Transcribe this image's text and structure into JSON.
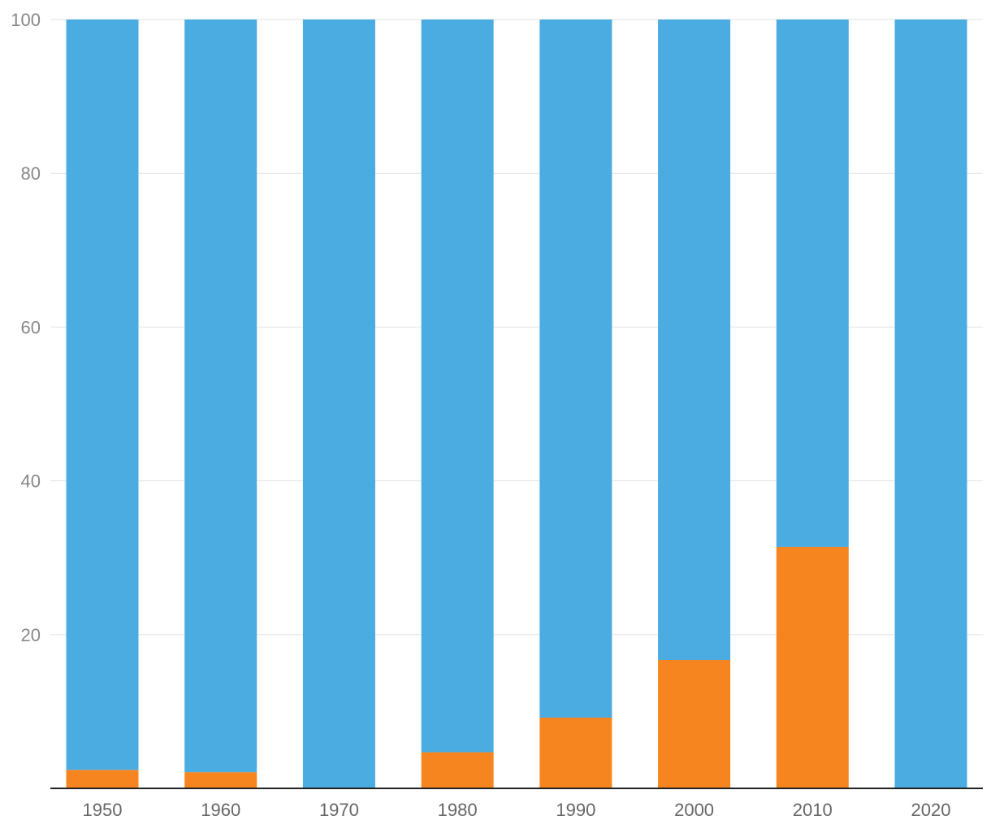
{
  "chart_data": {
    "type": "bar",
    "stacked": true,
    "title": "",
    "xlabel": "",
    "ylabel": "",
    "ylim": [
      0,
      100
    ],
    "yticks": [
      20,
      40,
      60,
      80,
      100
    ],
    "grid": true,
    "legend": "none",
    "categories": [
      "1950",
      "1960",
      "1970",
      "1980",
      "1990",
      "2000",
      "2010",
      "2020"
    ],
    "series": [
      {
        "color": "#f6851f",
        "values": [
          2.4,
          2.1,
          0,
          4.7,
          9.2,
          16.7,
          31.4,
          0
        ]
      },
      {
        "color": "#4aace0",
        "values": [
          97.6,
          97.9,
          100,
          95.3,
          90.8,
          83.3,
          68.6,
          100
        ]
      }
    ]
  }
}
